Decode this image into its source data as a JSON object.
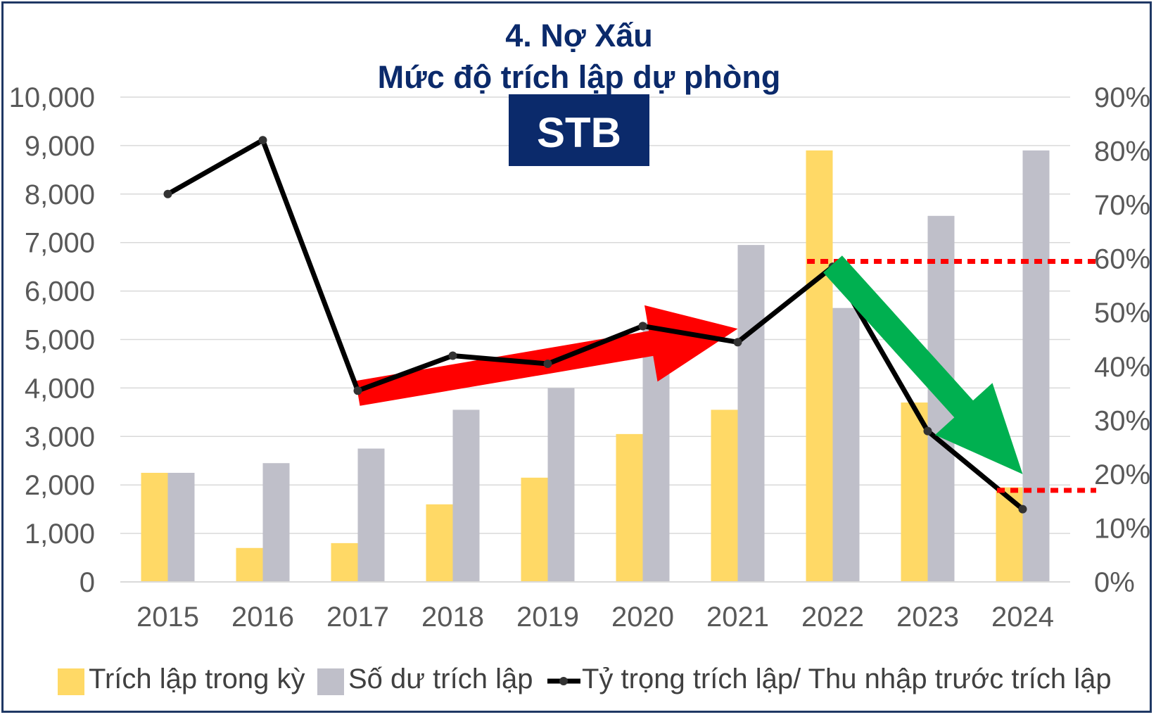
{
  "chart_data": {
    "type": "bar",
    "title": "4. Nợ Xấu",
    "subtitle": "Mức độ trích lập dự phòng",
    "badge": "STB",
    "categories": [
      "2015",
      "2016",
      "2017",
      "2018",
      "2019",
      "2020",
      "2021",
      "2022",
      "2023",
      "2024"
    ],
    "series": [
      {
        "name": "Trích lập trong kỳ",
        "kind": "bar",
        "axis": "left",
        "color": "#ffd966",
        "values": [
          2250,
          700,
          800,
          1600,
          2150,
          3050,
          3550,
          8900,
          3700,
          1950
        ]
      },
      {
        "name": "Số dư trích lập",
        "kind": "bar",
        "axis": "left",
        "color": "#bfbfc9",
        "values": [
          2250,
          2450,
          2750,
          3550,
          4000,
          5350,
          6950,
          5650,
          7550,
          8900
        ]
      },
      {
        "name": "Tỷ trọng trích lập/ Thu nhập trước trích lập",
        "kind": "line",
        "axis": "right",
        "color": "#000000",
        "values": [
          72,
          82,
          35.5,
          42,
          40.5,
          47.5,
          44.5,
          58.5,
          28,
          13.5
        ]
      }
    ],
    "y_left": {
      "min": 0,
      "max": 10000,
      "step": 1000,
      "tick_labels": [
        "0",
        "1,000",
        "2,000",
        "3,000",
        "4,000",
        "5,000",
        "6,000",
        "7,000",
        "8,000",
        "9,000",
        "10,000"
      ]
    },
    "y_right": {
      "min": 0,
      "max": 90,
      "step": 10,
      "tick_labels": [
        "0%",
        "10%",
        "20%",
        "30%",
        "40%",
        "50%",
        "60%",
        "70%",
        "80%",
        "90%"
      ]
    },
    "grid": true,
    "legend_position": "bottom",
    "annotations": [
      {
        "type": "arrow",
        "color": "#ff0000",
        "from": [
          "2017",
          35
        ],
        "to": [
          "2021",
          47
        ]
      },
      {
        "type": "arrow",
        "color": "#00b050",
        "from": [
          "2022",
          59
        ],
        "to": [
          "2024",
          20
        ]
      },
      {
        "type": "dashed-line",
        "color": "#ff0000",
        "from": [
          "2022",
          59.5
        ],
        "to_edge": "right"
      },
      {
        "type": "dashed-line",
        "color": "#ff0000",
        "from": [
          "2024",
          17
        ],
        "to_edge": "right"
      }
    ]
  }
}
